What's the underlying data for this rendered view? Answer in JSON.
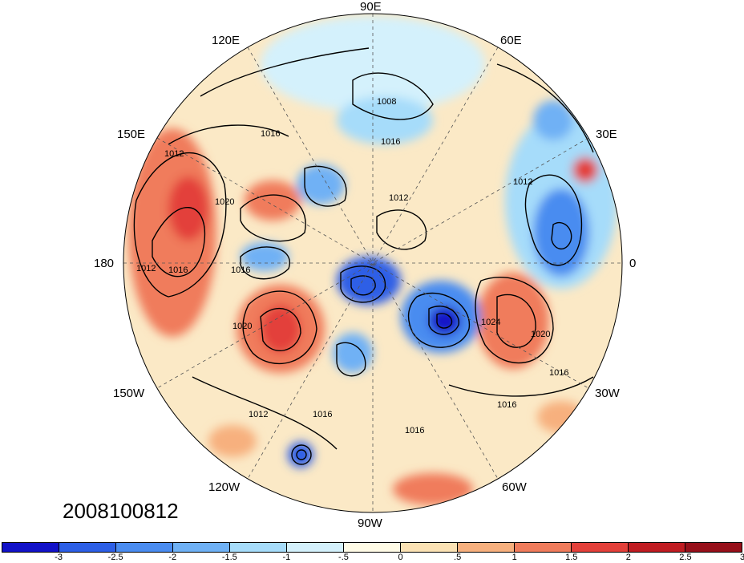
{
  "map": {
    "date_label": "2008100812",
    "longitude_labels": {
      "top": "90E",
      "bottom": "90W",
      "left": "180",
      "right": "0",
      "upper_left": "120E",
      "upper_right": "60E",
      "mid_upper_left": "150E",
      "mid_upper_right": "30E",
      "mid_lower_left": "150W",
      "mid_lower_right": "30W",
      "lower_left": "120W",
      "lower_right": "60W"
    },
    "contour_labels": [
      "1008",
      "1016",
      "1016",
      "1012",
      "1012",
      "1020",
      "1012",
      "1016",
      "1016",
      "1012",
      "1020",
      "1024",
      "1020",
      "1016",
      "1016",
      "1012",
      "1016",
      "1016"
    ]
  },
  "colorbar": {
    "colors": [
      "#1212c8",
      "#2d5fe6",
      "#4a8cf0",
      "#6fb1f5",
      "#a6dcfa",
      "#d4f1fc",
      "#fffbe6",
      "#fbe2b4",
      "#f7b07e",
      "#f07c5c",
      "#e3403a",
      "#c01c22",
      "#97101a"
    ],
    "tick_labels": [
      "-3",
      "-2.5",
      "-2",
      "-1.5",
      "-1",
      "-.5",
      "0",
      ".5",
      "1",
      "1.5",
      "2",
      "2.5",
      "3"
    ]
  }
}
